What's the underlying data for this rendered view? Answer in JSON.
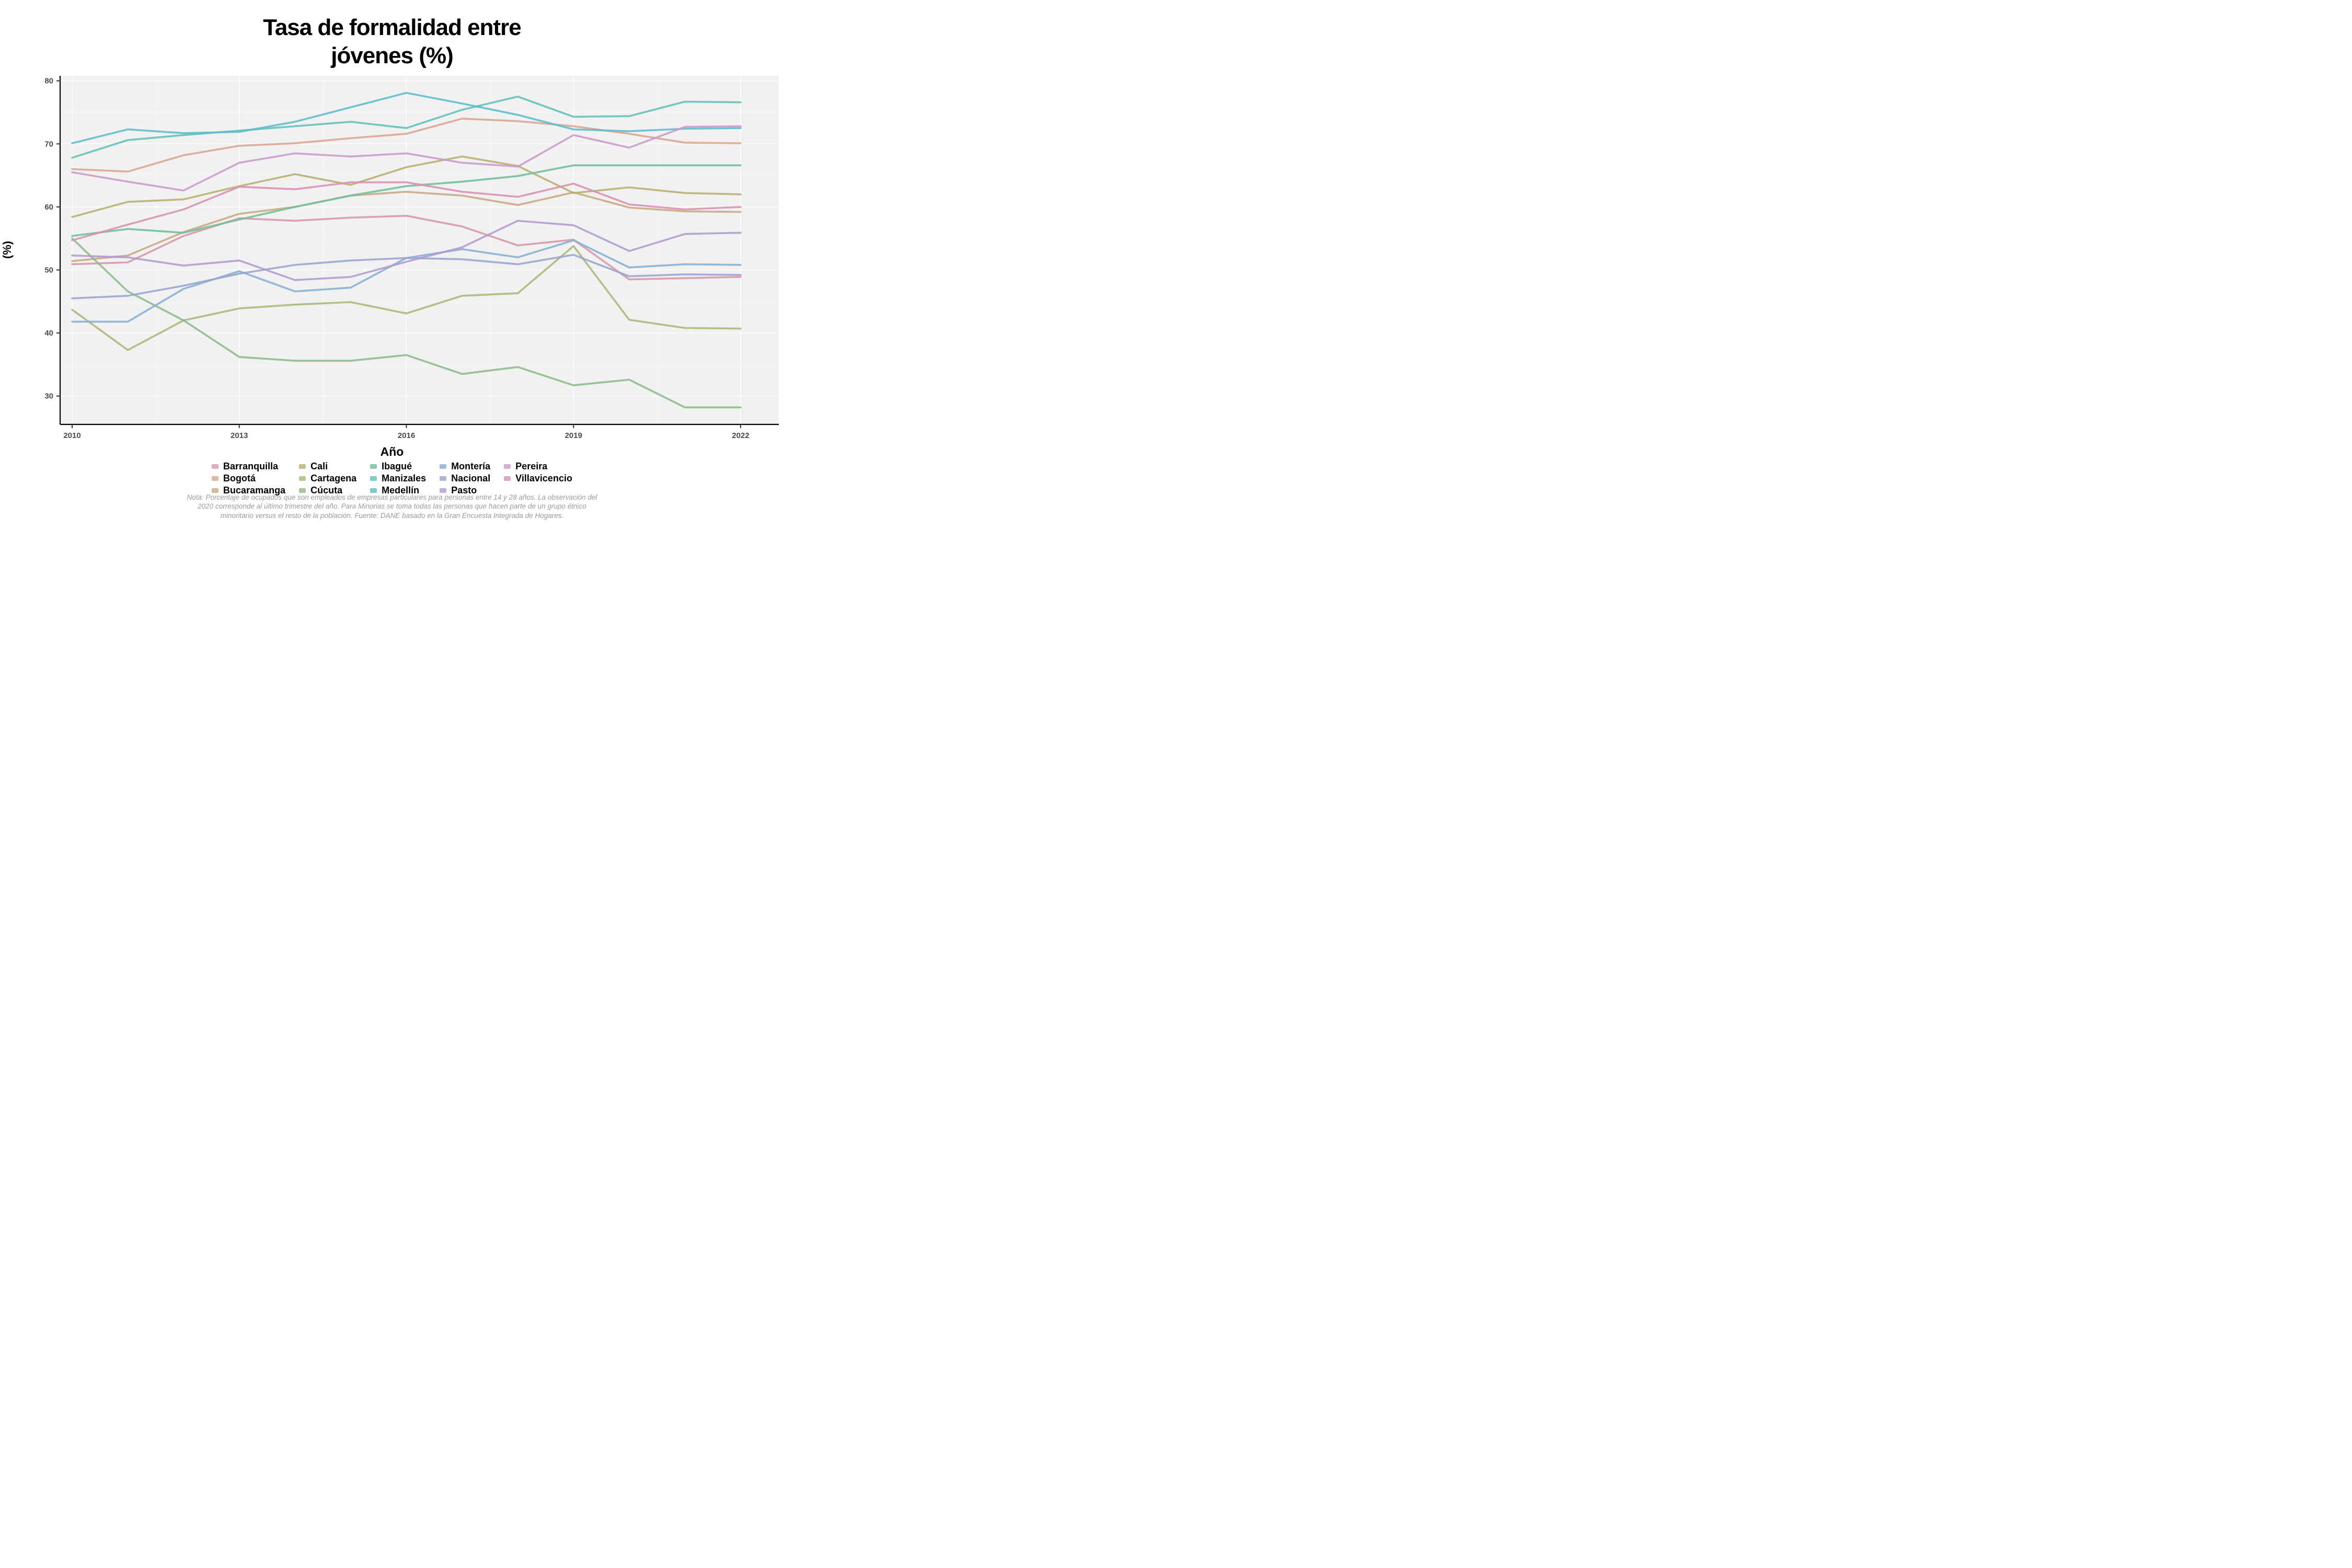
{
  "title": {
    "line1": "Tasa de formalidad entre",
    "line2": "jóvenes (%)"
  },
  "note": "Nota: Porcentaje de ocupados que son empleados de empresas particulares para personas entre 14 y 28 años. La observación del 2020 corresponde al último trimestre del año. Para Minorias se toma todas las personas que hacen parte de un grupo étnico minoritario versus el resto de la población. Fuente: DANE basado en la Gran Encuesta Integrada de Hogares.",
  "palette": {
    "plot_background": "#F1F1F1",
    "grid_major": "rgba(255,255,255,0.95)",
    "grid_minor": "rgba(255,255,255,0.45)",
    "axis_line": "#000000",
    "tick_mark": "#333333",
    "tick_label": "#4a4a4a"
  },
  "chart_data": {
    "type": "line",
    "title": "Tasa de formalidad entre jóvenes (%)",
    "xlabel": "Año",
    "ylabel": "(%)",
    "x": [
      2010,
      2011,
      2012,
      2013,
      2014,
      2015,
      2016,
      2017,
      2018,
      2019,
      2020,
      2021,
      2022
    ],
    "xticks": [
      2010,
      2013,
      2016,
      2019,
      2022
    ],
    "yticks": [
      30,
      40,
      50,
      60,
      70,
      80
    ],
    "ylim": [
      25.5,
      80.8
    ],
    "grid": "major and minor white gridlines on gray panel",
    "legend_position": "bottom",
    "series": [
      {
        "name": "Barranquilla",
        "color": "#D795A7",
        "values": [
          50.9,
          51.2,
          55.4,
          58.2,
          57.8,
          58.3,
          58.6,
          56.9,
          53.9,
          54.8,
          48.5,
          48.7,
          48.9
        ]
      },
      {
        "name": "Bogotá",
        "color": "#D9A491",
        "values": [
          66.0,
          65.6,
          68.2,
          69.7,
          70.1,
          70.9,
          71.6,
          74.0,
          73.6,
          72.8,
          71.6,
          70.2,
          70.1
        ]
      },
      {
        "name": "Bucaramanga",
        "color": "#C9A97E",
        "values": [
          51.4,
          52.3,
          56.0,
          58.9,
          60.0,
          61.8,
          62.4,
          61.8,
          60.3,
          62.3,
          59.9,
          59.3,
          59.2
        ]
      },
      {
        "name": "Cali",
        "color": "#B6AF6E",
        "values": [
          58.4,
          60.8,
          61.2,
          63.3,
          65.2,
          63.5,
          66.3,
          68.0,
          66.5,
          62.2,
          63.1,
          62.2,
          62.0
        ]
      },
      {
        "name": "Cartagena",
        "color": "#A6B877",
        "values": [
          43.7,
          37.3,
          42.0,
          43.9,
          44.5,
          44.9,
          43.1,
          45.9,
          46.3,
          53.8,
          42.1,
          40.8,
          40.7
        ]
      },
      {
        "name": "Cúcuta",
        "color": "#8CBA8B",
        "values": [
          55.0,
          46.6,
          42.0,
          36.2,
          35.6,
          35.6,
          36.5,
          33.5,
          34.6,
          31.7,
          32.6,
          28.2,
          28.2
        ]
      },
      {
        "name": "Ibagué",
        "color": "#6FBD9B",
        "values": [
          55.4,
          56.5,
          55.9,
          58.0,
          60.0,
          61.8,
          63.3,
          64.0,
          64.9,
          66.6,
          66.6,
          66.6,
          66.6
        ]
      },
      {
        "name": "Manizales",
        "color": "#5FC0B6",
        "values": [
          67.8,
          70.6,
          71.4,
          72.1,
          72.8,
          73.5,
          72.5,
          75.4,
          77.5,
          74.3,
          74.4,
          76.7,
          76.6
        ]
      },
      {
        "name": "Medellín",
        "color": "#5CBCCC",
        "values": [
          70.1,
          72.3,
          71.7,
          71.9,
          73.5,
          75.8,
          78.1,
          76.4,
          74.6,
          72.3,
          72.0,
          72.4,
          72.5
        ]
      },
      {
        "name": "Montería",
        "color": "#85AED3",
        "values": [
          41.8,
          41.8,
          47.0,
          49.8,
          46.6,
          47.2,
          51.9,
          53.3,
          52.0,
          54.7,
          50.4,
          50.9,
          50.8
        ]
      },
      {
        "name": "Nacional",
        "color": "#99A3CF",
        "values": [
          45.5,
          45.9,
          47.5,
          49.4,
          50.8,
          51.5,
          51.9,
          51.7,
          50.9,
          52.4,
          49.0,
          49.3,
          49.2
        ]
      },
      {
        "name": "Pasto",
        "color": "#B298CF",
        "values": [
          52.3,
          52.0,
          50.7,
          51.5,
          48.4,
          48.9,
          51.3,
          53.6,
          57.8,
          57.1,
          53.0,
          55.7,
          55.9
        ]
      },
      {
        "name": "Pereira",
        "color": "#CB98CC",
        "values": [
          65.5,
          64.0,
          62.6,
          67.0,
          68.5,
          68.0,
          68.5,
          67.0,
          66.4,
          71.4,
          69.4,
          72.7,
          72.8
        ]
      },
      {
        "name": "Villavicencio",
        "color": "#D88FB1",
        "values": [
          54.7,
          57.2,
          59.6,
          63.2,
          62.8,
          63.9,
          63.9,
          62.4,
          61.6,
          63.7,
          60.4,
          59.6,
          60.0
        ]
      }
    ],
    "legend_columns": [
      [
        "Barranquilla",
        "Bogotá",
        "Bucaramanga"
      ],
      [
        "Cali",
        "Cartagena",
        "Cúcuta"
      ],
      [
        "Ibagué",
        "Manizales",
        "Medellín"
      ],
      [
        "Montería",
        "Nacional",
        "Pasto"
      ],
      [
        "Pereira",
        "Villavicencio"
      ]
    ]
  }
}
